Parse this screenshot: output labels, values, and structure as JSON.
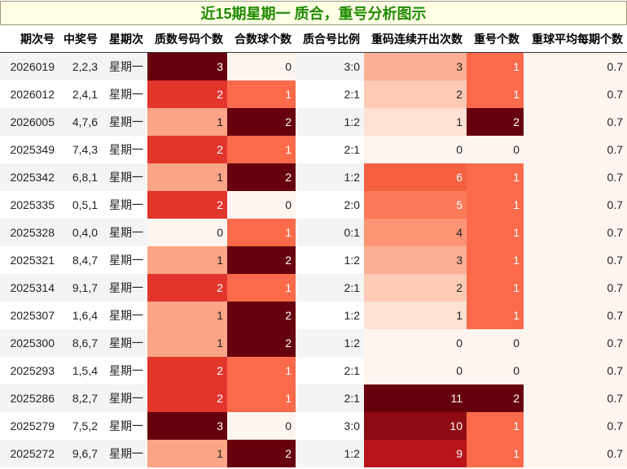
{
  "title": "近15期星期一 质合，重号分析图示",
  "columns": [
    "期次号",
    "中奖号",
    "星期次",
    "质数号码个数",
    "合数球个数",
    "质合号比例",
    "重码连续开出次数",
    "重号个数",
    "重球平均每期个数"
  ],
  "rows": [
    [
      "2026019",
      "2,2,3",
      "星期一",
      "3",
      "0",
      "3:0",
      "3",
      "1",
      "0.7"
    ],
    [
      "2026012",
      "2,4,1",
      "星期一",
      "2",
      "1",
      "2:1",
      "2",
      "1",
      "0.7"
    ],
    [
      "2026005",
      "4,7,6",
      "星期一",
      "1",
      "2",
      "1:2",
      "1",
      "2",
      "0.7"
    ],
    [
      "2025349",
      "7,4,3",
      "星期一",
      "2",
      "1",
      "2:1",
      "0",
      "0",
      "0.7"
    ],
    [
      "2025342",
      "6,8,1",
      "星期一",
      "1",
      "2",
      "1:2",
      "6",
      "1",
      "0.7"
    ],
    [
      "2025335",
      "0,5,1",
      "星期一",
      "2",
      "0",
      "2:0",
      "5",
      "1",
      "0.7"
    ],
    [
      "2025328",
      "0,4,0",
      "星期一",
      "0",
      "1",
      "0:1",
      "4",
      "1",
      "0.7"
    ],
    [
      "2025321",
      "8,4,7",
      "星期一",
      "1",
      "2",
      "1:2",
      "3",
      "1",
      "0.7"
    ],
    [
      "2025314",
      "9,1,7",
      "星期一",
      "2",
      "1",
      "2:1",
      "2",
      "1",
      "0.7"
    ],
    [
      "2025307",
      "1,6,4",
      "星期一",
      "1",
      "2",
      "1:2",
      "1",
      "1",
      "0.7"
    ],
    [
      "2025300",
      "8,6,7",
      "星期一",
      "1",
      "2",
      "1:2",
      "0",
      "0",
      "0.7"
    ],
    [
      "2025293",
      "1,5,4",
      "星期一",
      "2",
      "1",
      "2:1",
      "0",
      "0",
      "0.7"
    ],
    [
      "2025286",
      "8,2,7",
      "星期一",
      "2",
      "1",
      "2:1",
      "11",
      "2",
      "0.7"
    ],
    [
      "2025279",
      "7,5,2",
      "星期一",
      "3",
      "0",
      "3:0",
      "10",
      "1",
      "0.7"
    ],
    [
      "2025272",
      "9,6,7",
      "星期一",
      "1",
      "2",
      "1:2",
      "9",
      "1",
      "0.7"
    ]
  ],
  "heat_colors": {
    "col_prime": {
      "0": "#fff5f0",
      "1": "#fca486",
      "2": "#e2362d",
      "3": "#67000d"
    },
    "col_comp": {
      "0": "#fff5f0",
      "1": "#fb6b4b",
      "2": "#67000d"
    },
    "col_repeat": {
      "0": "#fff5f0",
      "1": "#fee1d3",
      "2": "#fdcab5",
      "3": "#fcaf92",
      "4": "#fc9474",
      "5": "#fb7a5a",
      "6": "#f5603f",
      "9": "#b81419",
      "10": "#8e0b13",
      "11": "#67000d"
    },
    "col_rcount": {
      "0": "#fff5f0",
      "1": "#fb6b4b",
      "2": "#67000d"
    },
    "col_avg": "#fff5f0"
  }
}
